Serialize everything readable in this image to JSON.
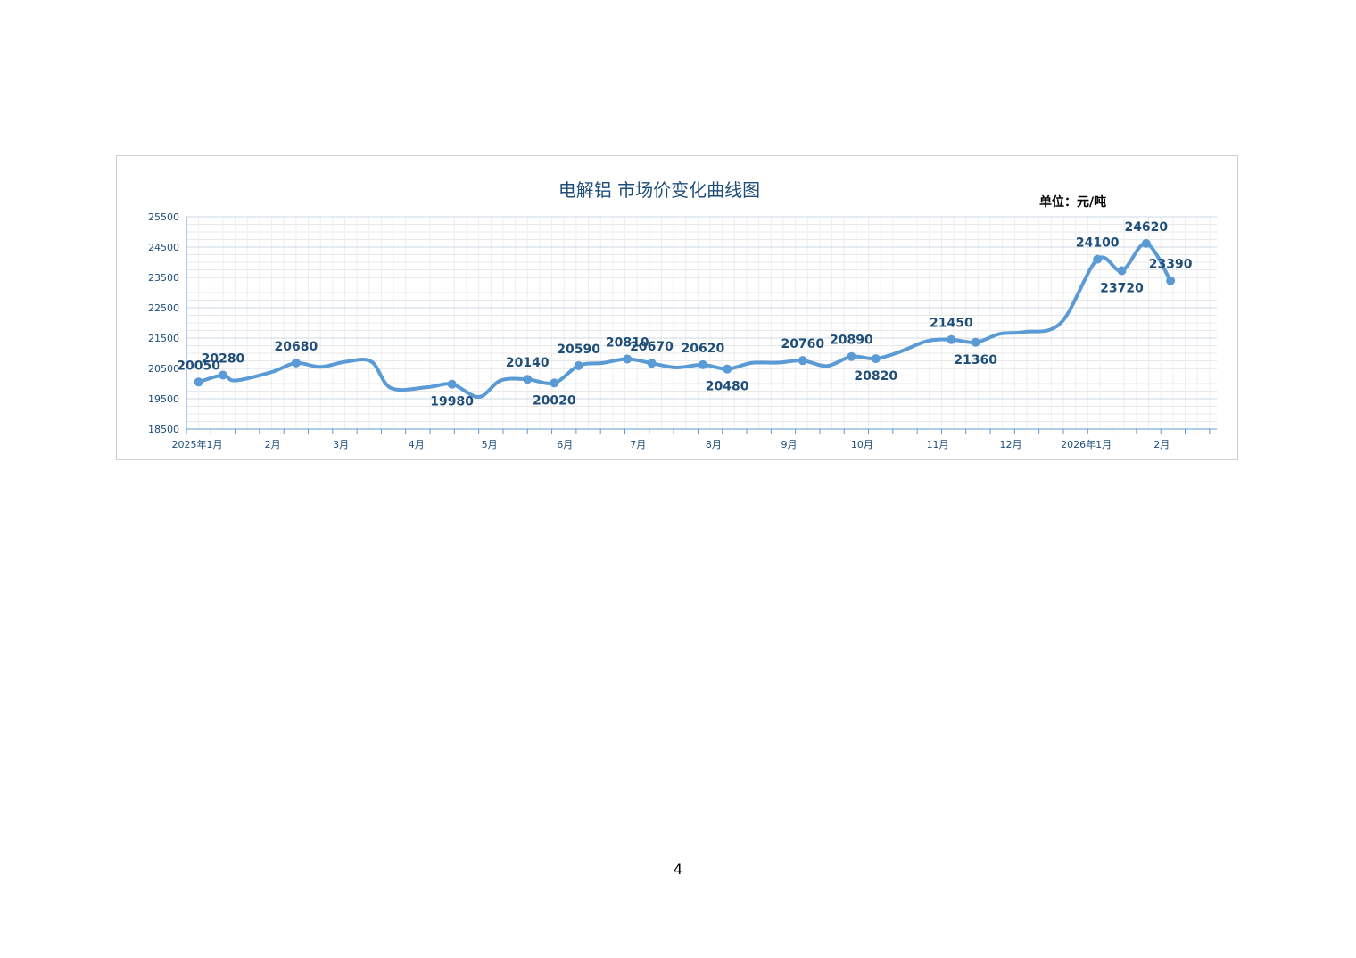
{
  "page": {
    "page_number": "4"
  },
  "chart_data": {
    "type": "line",
    "title": "电解铝 市场价变化曲线图",
    "unit_label": "单位：元/吨",
    "xlabel": "",
    "ylabel": "",
    "ylim": [
      18500,
      25500
    ],
    "yticks": [
      "25500",
      "24500",
      "23500",
      "22500",
      "21500",
      "20500",
      "19500",
      "18500"
    ],
    "x_range": [
      "2025-01-01",
      "2026-02-28"
    ],
    "x_tick_labels": [
      {
        "label": "2025年1月",
        "date": "2025-01-01"
      },
      {
        "label": "2月",
        "date": "2025-02-01"
      },
      {
        "label": "3月",
        "date": "2025-03-01"
      },
      {
        "label": "4月",
        "date": "2025-04-01"
      },
      {
        "label": "5月",
        "date": "2025-05-01"
      },
      {
        "label": "6月",
        "date": "2025-06-01"
      },
      {
        "label": "7月",
        "date": "2025-07-01"
      },
      {
        "label": "8月",
        "date": "2025-08-01"
      },
      {
        "label": "9月",
        "date": "2025-09-01"
      },
      {
        "label": "10月",
        "date": "2025-10-01"
      },
      {
        "label": "11月",
        "date": "2025-11-01"
      },
      {
        "label": "12月",
        "date": "2025-12-01"
      },
      {
        "label": "2026年1月",
        "date": "2026-01-01"
      },
      {
        "label": "2月",
        "date": "2026-02-01"
      }
    ],
    "grid": true,
    "series_color": "#5b9bd5",
    "label_color": "#1f4e79",
    "title_color": "#1f4e79",
    "points": [
      {
        "x": "2025-01-06",
        "y": 20050,
        "label": "20050"
      },
      {
        "x": "2025-01-16",
        "y": 20280,
        "label": "20280"
      },
      {
        "x": "2025-01-21",
        "y": 20100,
        "marker": false
      },
      {
        "x": "2025-02-05",
        "y": 20380,
        "marker": false
      },
      {
        "x": "2025-02-15",
        "y": 20680,
        "label": "20680"
      },
      {
        "x": "2025-02-25",
        "y": 20550,
        "marker": false
      },
      {
        "x": "2025-03-08",
        "y": 20730,
        "marker": false
      },
      {
        "x": "2025-03-18",
        "y": 20720,
        "marker": false
      },
      {
        "x": "2025-03-26",
        "y": 19850,
        "marker": false
      },
      {
        "x": "2025-04-10",
        "y": 19880,
        "marker": false
      },
      {
        "x": "2025-04-20",
        "y": 19980,
        "label": "19980"
      },
      {
        "x": "2025-05-01",
        "y": 19560,
        "marker": false
      },
      {
        "x": "2025-05-10",
        "y": 20100,
        "marker": false
      },
      {
        "x": "2025-05-21",
        "y": 20140,
        "label": "20140"
      },
      {
        "x": "2025-06-01",
        "y": 20020,
        "label": "20020"
      },
      {
        "x": "2025-06-11",
        "y": 20590,
        "label": "20590"
      },
      {
        "x": "2025-06-21",
        "y": 20680,
        "marker": false
      },
      {
        "x": "2025-07-01",
        "y": 20810,
        "label": "20810"
      },
      {
        "x": "2025-07-11",
        "y": 20670,
        "label": "20670"
      },
      {
        "x": "2025-07-21",
        "y": 20530,
        "marker": false
      },
      {
        "x": "2025-08-01",
        "y": 20620,
        "label": "20620"
      },
      {
        "x": "2025-08-11",
        "y": 20480,
        "label": "20480"
      },
      {
        "x": "2025-08-21",
        "y": 20680,
        "marker": false
      },
      {
        "x": "2025-09-01",
        "y": 20690,
        "marker": false
      },
      {
        "x": "2025-09-11",
        "y": 20760,
        "label": "20760"
      },
      {
        "x": "2025-09-21",
        "y": 20580,
        "marker": false
      },
      {
        "x": "2025-10-01",
        "y": 20890,
        "label": "20890"
      },
      {
        "x": "2025-10-11",
        "y": 20820,
        "label": "20820"
      },
      {
        "x": "2025-10-21",
        "y": 21050,
        "marker": false
      },
      {
        "x": "2025-11-01",
        "y": 21400,
        "marker": false
      },
      {
        "x": "2025-11-11",
        "y": 21450,
        "label": "21450"
      },
      {
        "x": "2025-11-21",
        "y": 21360,
        "label": "21360"
      },
      {
        "x": "2025-12-01",
        "y": 21640,
        "marker": false
      },
      {
        "x": "2025-12-11",
        "y": 21700,
        "marker": false
      },
      {
        "x": "2025-12-26",
        "y": 22000,
        "marker": false
      },
      {
        "x": "2026-01-10",
        "y": 24100,
        "label": "24100"
      },
      {
        "x": "2026-01-20",
        "y": 23720,
        "label": "23720"
      },
      {
        "x": "2026-01-30",
        "y": 24620,
        "label": "24620"
      },
      {
        "x": "2026-02-09",
        "y": 23390,
        "label": "23390"
      }
    ]
  }
}
